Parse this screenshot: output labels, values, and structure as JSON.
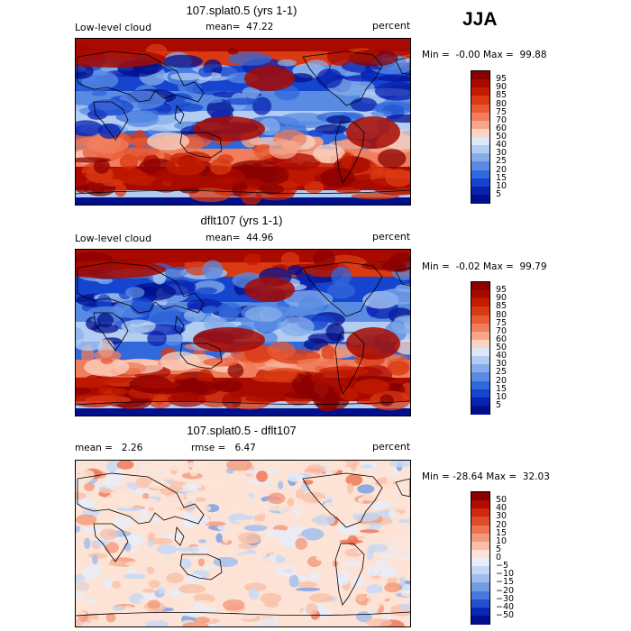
{
  "season": "JJA",
  "panels": [
    {
      "id": "top",
      "title": "107.splat0.5 (yrs 1-1)",
      "left_label": "Low-level cloud",
      "center_label": "mean=  47.22",
      "right_label": "percent",
      "minmax": "Min =  -0.00 Max =  99.88",
      "field": "cloud",
      "colorbar": {
        "labels": [
          "95",
          "90",
          "85",
          "80",
          "75",
          "70",
          "60",
          "50",
          "40",
          "30",
          "25",
          "20",
          "15",
          "10",
          "5"
        ],
        "colors": [
          "#8a0000",
          "#a80a00",
          "#c41c00",
          "#d93a12",
          "#e85a34",
          "#f07e5c",
          "#f7a88b",
          "#fbd5c3",
          "#dce8f8",
          "#b3cdf2",
          "#86adea",
          "#5a8be2",
          "#3168db",
          "#1544cf",
          "#0a22b0",
          "#000f8c"
        ]
      }
    },
    {
      "id": "middle",
      "title": "dflt107 (yrs 1-1)",
      "left_label": "Low-level cloud",
      "center_label": "mean=  44.96",
      "right_label": "percent",
      "minmax": "Min =  -0.02 Max =  99.79",
      "field": "cloud",
      "colorbar": {
        "labels": [
          "95",
          "90",
          "85",
          "80",
          "75",
          "70",
          "60",
          "50",
          "40",
          "30",
          "25",
          "20",
          "15",
          "10",
          "5"
        ],
        "colors": [
          "#8a0000",
          "#a80a00",
          "#c41c00",
          "#d93a12",
          "#e85a34",
          "#f07e5c",
          "#f7a88b",
          "#fbd5c3",
          "#dce8f8",
          "#b3cdf2",
          "#86adea",
          "#5a8be2",
          "#3168db",
          "#1544cf",
          "#0a22b0",
          "#000f8c"
        ]
      }
    },
    {
      "id": "bottom",
      "title": "107.splat0.5 - dflt107",
      "left_label": "mean =   2.26",
      "center_label": "rmse =   6.47",
      "right_label": "percent",
      "minmax": "Min = -28.64 Max =  32.03",
      "field": "diff",
      "colorbar": {
        "labels": [
          "50",
          "40",
          "30",
          "20",
          "15",
          "10",
          "5",
          "0",
          "−5",
          "−10",
          "−15",
          "−20",
          "−30",
          "−40",
          "−50"
        ],
        "colors": [
          "#8a0000",
          "#b00c00",
          "#cf2a10",
          "#e04c2c",
          "#ee7352",
          "#f49a7c",
          "#f9bfa8",
          "#fce3d6",
          "#e6eefb",
          "#c6d8f5",
          "#9fbdee",
          "#749ce5",
          "#4979dc",
          "#2250d0",
          "#0a28b4",
          "#000f8c"
        ]
      }
    }
  ]
}
